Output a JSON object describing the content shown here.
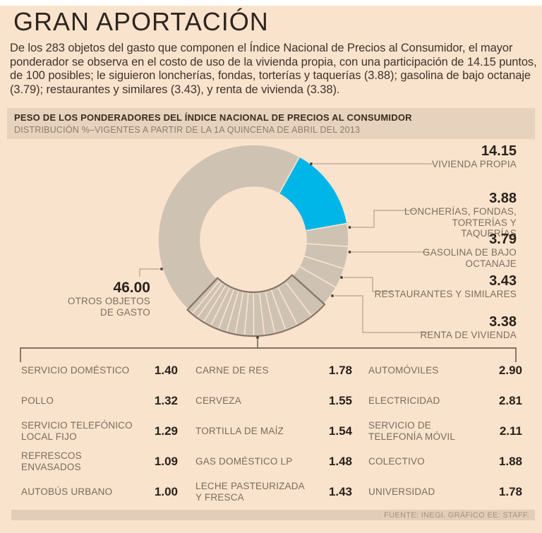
{
  "page": {
    "title": "GRAN APORTACIÓN",
    "intro": "De los 283 objetos del gasto que componen el Índice Nacional de Precios al Consumidor, el mayor ponderador se observa en el costo de uso de la vivienda propia, con una participación de 14.15 puntos, de 100 posibles; le siguieron loncherías, fondas, torterías y taquerías (3.88); gasolina de bajo octanaje (3.79); restaurantes y similares (3.43), y renta de vivienda (3.38)."
  },
  "panel": {
    "title": "PESO DE LOS PONDERADORES DEL ÍNDICE NACIONAL DE PRECIOS AL CONSUMIDOR",
    "subtitle": "DISTRIBUCIÓN %–VIGENTES A PARTIR DE LA 1A QUINCENA DE ABRIL DEL 2013"
  },
  "chart_data": {
    "type": "pie",
    "donut": true,
    "title": "Peso de los ponderadores del INPC, distribución % de 100 puntos",
    "start_angle_deg": 29,
    "colors": {
      "highlight": "#00b6e8",
      "base": "#cec2b3",
      "group_outline": "#87796a",
      "separator": "#fae3cd"
    },
    "segments": [
      {
        "label": "VIVIENDA PROPIA",
        "value": 14.15,
        "highlight": true
      },
      {
        "label": "LONCHERÍAS, FONDAS, TORTERÍAS Y TAQUERÍAS",
        "value": 3.88
      },
      {
        "label": "GASOLINA DE BAJO OCTANAJE",
        "value": 3.79
      },
      {
        "label": "RESTAURANTES Y SIMILARES",
        "value": 3.43
      },
      {
        "label": "RENTA DE VIVIENDA",
        "value": 3.38
      },
      {
        "label": "AUTOMÓVILES",
        "value": 2.9,
        "in_group": true
      },
      {
        "label": "ELECTRICIDAD",
        "value": 2.81,
        "in_group": true
      },
      {
        "label": "SERVICIO DE TELEFONÍA MÓVIL",
        "value": 2.11,
        "in_group": true
      },
      {
        "label": "COLECTIVO",
        "value": 1.88,
        "in_group": true
      },
      {
        "label": "CARNE DE RES",
        "value": 1.78,
        "in_group": true
      },
      {
        "label": "UNIVERSIDAD",
        "value": 1.78,
        "in_group": true
      },
      {
        "label": "CERVEZA",
        "value": 1.55,
        "in_group": true
      },
      {
        "label": "TORTILLA DE MAÍZ",
        "value": 1.54,
        "in_group": true
      },
      {
        "label": "GAS DOMÉSTICO LP",
        "value": 1.48,
        "in_group": true
      },
      {
        "label": "LECHE PASTEURIZADA Y FRESCA",
        "value": 1.43,
        "in_group": true
      },
      {
        "label": "SERVICIO DOMÉSTICO",
        "value": 1.4,
        "in_group": true
      },
      {
        "label": "POLLO",
        "value": 1.32,
        "in_group": true
      },
      {
        "label": "SERVICIO TELEFÓNICO LOCAL FIJO",
        "value": 1.29,
        "in_group": true
      },
      {
        "label": "REFRESCOS ENVASADOS",
        "value": 1.09,
        "in_group": true
      },
      {
        "label": "AUTOBÚS URBANO",
        "value": 1.0,
        "in_group": true
      },
      {
        "label": "OTROS OBJETOS DE GASTO",
        "value": 46.0
      }
    ],
    "callouts": [
      {
        "value": "14.15",
        "label": "VIVIENDA PROPIA"
      },
      {
        "value": "3.88",
        "label": "LONCHERÍAS, FONDAS, TORTERÍAS Y TAQUERÍAS"
      },
      {
        "value": "3.79",
        "label": "GASOLINA DE BAJO OCTANAJE"
      },
      {
        "value": "3.43",
        "label": "RESTAURANTES Y SIMILARES"
      },
      {
        "value": "3.38",
        "label": "RENTA DE VIVIENDA"
      },
      {
        "value": "46.00",
        "label": "OTROS OBJETOS DE GASTO"
      }
    ]
  },
  "table": {
    "rows": [
      [
        {
          "label": "SERVICIO DOMÉSTICO",
          "value": "1.40"
        },
        {
          "label": "CARNE DE RES",
          "value": "1.78"
        },
        {
          "label": "AUTOMÓVILES",
          "value": "2.90"
        }
      ],
      [
        {
          "label": "POLLO",
          "value": "1.32"
        },
        {
          "label": "CERVEZA",
          "value": "1.55"
        },
        {
          "label": "ELECTRICIDAD",
          "value": "2.81"
        }
      ],
      [
        {
          "label": "SERVICIO TELEFÓNICO LOCAL FIJO",
          "value": "1.29"
        },
        {
          "label": "TORTILLA DE MAÍZ",
          "value": "1.54"
        },
        {
          "label": "SERVICIO DE TELEFONÍA MÓVIL",
          "value": "2.11"
        }
      ],
      [
        {
          "label": "REFRESCOS ENVASADOS",
          "value": "1.09"
        },
        {
          "label": "GAS DOMÉSTICO LP",
          "value": "1.48"
        },
        {
          "label": "COLECTIVO",
          "value": "1.88"
        }
      ],
      [
        {
          "label": "AUTOBÚS URBANO",
          "value": "1.00"
        },
        {
          "label": "LECHE PASTEURIZADA Y FRESCA",
          "value": "1.43"
        },
        {
          "label": "UNIVERSIDAD",
          "value": "1.78"
        }
      ]
    ]
  },
  "footer": {
    "source": "FUENTE: INEGI.  GRÁFICO EE: STAFF."
  }
}
